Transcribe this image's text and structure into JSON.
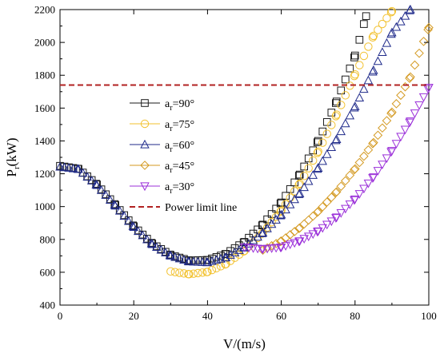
{
  "chart_data": {
    "type": "scatter",
    "title": "",
    "xlabel": "V/(m/s)",
    "ylabel_main": "P",
    "ylabel_sub": "r",
    "ylabel_unit": "(kW)",
    "xlim": [
      0,
      100
    ],
    "ylim": [
      400,
      2200
    ],
    "x_ticks": [
      0,
      20,
      40,
      60,
      80,
      100
    ],
    "y_ticks": [
      400,
      600,
      800,
      1000,
      1200,
      1400,
      1600,
      1800,
      2000,
      2200
    ],
    "grid": false,
    "legend_position": "center-left",
    "series": [
      {
        "name_main": "a",
        "name_sub": "r",
        "name_rest": "=90°",
        "marker": "square",
        "color": "#1a1a1a",
        "points": [
          [
            0,
            1248
          ],
          [
            5,
            1230
          ],
          [
            10,
            1135
          ],
          [
            15,
            1010
          ],
          [
            20,
            880
          ],
          [
            25,
            775
          ],
          [
            30,
            705
          ],
          [
            35,
            672
          ],
          [
            40,
            675
          ],
          [
            45,
            712
          ],
          [
            50,
            785
          ],
          [
            55,
            890
          ],
          [
            60,
            1025
          ],
          [
            65,
            1195
          ],
          [
            70,
            1400
          ],
          [
            75,
            1640
          ],
          [
            80,
            1920
          ],
          [
            83,
            2160
          ]
        ]
      },
      {
        "name_main": "a",
        "name_sub": "r",
        "name_rest": "=75°",
        "marker": "circle",
        "color": "#f2c12e",
        "points": [
          [
            30,
            605
          ],
          [
            35,
            588
          ],
          [
            40,
            602
          ],
          [
            45,
            650
          ],
          [
            50,
            730
          ],
          [
            55,
            840
          ],
          [
            60,
            975
          ],
          [
            65,
            1140
          ],
          [
            70,
            1335
          ],
          [
            75,
            1560
          ],
          [
            80,
            1805
          ],
          [
            85,
            2040
          ],
          [
            90,
            2190
          ]
        ]
      },
      {
        "name_main": "a",
        "name_sub": "r",
        "name_rest": "=60°",
        "marker": "triangle-up",
        "color": "#1f2a8a",
        "points": [
          [
            0,
            1242
          ],
          [
            5,
            1228
          ],
          [
            10,
            1130
          ],
          [
            15,
            1005
          ],
          [
            20,
            875
          ],
          [
            25,
            770
          ],
          [
            30,
            700
          ],
          [
            35,
            665
          ],
          [
            40,
            660
          ],
          [
            45,
            690
          ],
          [
            50,
            752
          ],
          [
            55,
            840
          ],
          [
            60,
            950
          ],
          [
            65,
            1080
          ],
          [
            70,
            1235
          ],
          [
            75,
            1410
          ],
          [
            80,
            1610
          ],
          [
            85,
            1830
          ],
          [
            90,
            2060
          ],
          [
            95,
            2200
          ]
        ]
      },
      {
        "name_main": "a",
        "name_sub": "r",
        "name_rest": "=45°",
        "marker": "diamond",
        "color": "#d49a22",
        "points": [
          [
            55,
            735
          ],
          [
            60,
            790
          ],
          [
            65,
            870
          ],
          [
            70,
            970
          ],
          [
            75,
            1090
          ],
          [
            80,
            1230
          ],
          [
            85,
            1390
          ],
          [
            90,
            1575
          ],
          [
            95,
            1790
          ],
          [
            100,
            2090
          ]
        ]
      },
      {
        "name_main": "a",
        "name_sub": "r",
        "name_rest": "=30°",
        "marker": "triangle-down",
        "color": "#9b30d9",
        "points": [
          [
            50,
            752
          ],
          [
            55,
            742
          ],
          [
            60,
            752
          ],
          [
            65,
            790
          ],
          [
            70,
            850
          ],
          [
            75,
            935
          ],
          [
            80,
            1045
          ],
          [
            85,
            1180
          ],
          [
            90,
            1340
          ],
          [
            95,
            1520
          ],
          [
            100,
            1725
          ]
        ]
      }
    ],
    "reference_line": {
      "name": "Power limit line",
      "y": 1740,
      "color": "#b22222",
      "style": "dashed"
    }
  }
}
